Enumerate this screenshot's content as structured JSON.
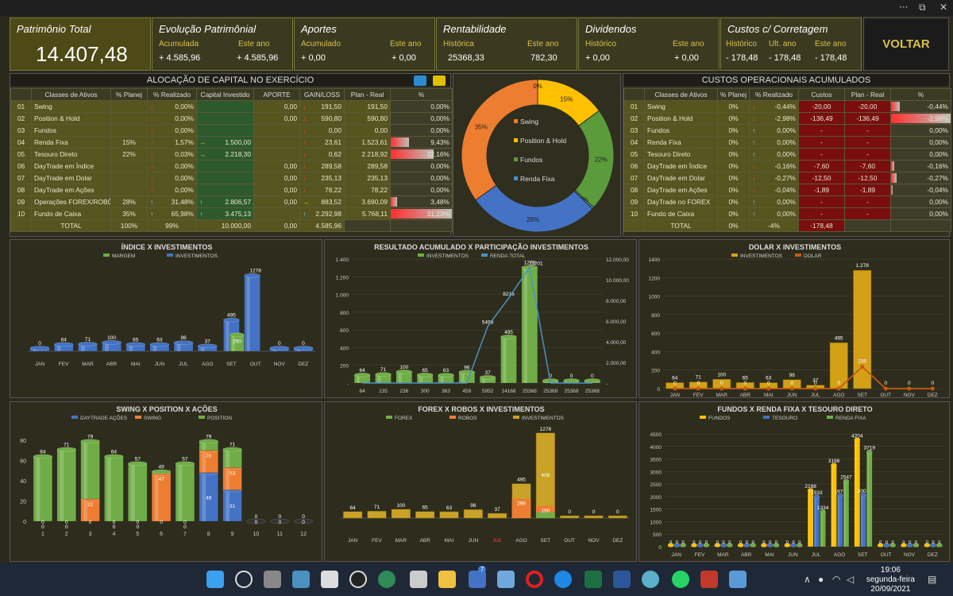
{
  "titlebar": {
    "dots": "···",
    "restore": "⧉",
    "close": "✕"
  },
  "kpis": {
    "total": {
      "title": "Patrimônio Total",
      "value": "14.407,48"
    },
    "evolucao": {
      "title": "Evolução Patrimônial",
      "l1": "Acumulada",
      "l2": "Este ano",
      "v1": "+ 4.585,96",
      "v2": "+ 4.585,96"
    },
    "aportes": {
      "title": "Aportes",
      "l1": "Acumulado",
      "l2": "Este ano",
      "v1": "+ 0,00",
      "v2": "+ 0,00"
    },
    "rent": {
      "title": "Rentabilidade",
      "l1": "Histórica",
      "l2": "Este ano",
      "v1": "25368,33",
      "v2": "782,30"
    },
    "div": {
      "title": "Dividendos",
      "l1": "Histórico",
      "l2": "Este ano",
      "v1": "+ 0,00",
      "v2": "+ 0,00"
    },
    "custos": {
      "title": "Custos c/ Corretagem",
      "l1": "Histórico",
      "l2": "Ult. ano",
      "l3": "Este ano",
      "v1": "- 178,48",
      "v2": "- 178,48",
      "v3": "- 178,48"
    }
  },
  "voltar": "VOLTAR",
  "alloc": {
    "title": "ALOCAÇÃO DE CAPITAL NO EXERCÍCIO",
    "headers": [
      "",
      "Classes de Ativos",
      "% Planej",
      "% Realizado",
      "Capital Investido",
      "APORTE",
      "GAIN/LOSS",
      "Plan - Real",
      "%"
    ],
    "rows": [
      {
        "n": "01",
        "name": "Swing",
        "plan": "",
        "arrow": "dn",
        "real": "0,00%",
        "carrow": "",
        "cap": "",
        "aporte": "0,00",
        "garrow": "dn",
        "gain": "191,50",
        "pr": "191,50",
        "pct": "0,00%",
        "bar": 0
      },
      {
        "n": "02",
        "name": "Position & Hold",
        "plan": "",
        "arrow": "dn",
        "real": "0,00%",
        "carrow": "",
        "cap": "",
        "aporte": "0,00",
        "garrow": "dn",
        "gain": "590,80",
        "pr": "590,80",
        "pct": "0,00%",
        "bar": 0
      },
      {
        "n": "03",
        "name": "Fundos",
        "plan": "",
        "arrow": "dn",
        "real": "0,00%",
        "carrow": "",
        "cap": "",
        "aporte": "",
        "garrow": "dn",
        "gain": "0,00",
        "pr": "0,00",
        "pct": "0,00%",
        "bar": 0
      },
      {
        "n": "04",
        "name": "Renda Fixa",
        "plan": "15%",
        "arrow": "dn",
        "real": "1,57%",
        "carrow": "rt",
        "cap": "1.500,00",
        "aporte": "",
        "garrow": "dn",
        "gain": "23,61",
        "pr": "1.523,61",
        "pct": "9,43%",
        "bar": 0.3
      },
      {
        "n": "05",
        "name": "Tesouro Direto",
        "plan": "22%",
        "arrow": "dn",
        "real": "0,03%",
        "carrow": "rt",
        "cap": "2.218,30",
        "aporte": "",
        "garrow": "dn",
        "gain": "0,62",
        "pr": "2.218,92",
        "pct": "22,16%",
        "bar": 0.7
      },
      {
        "n": "06",
        "name": "DayTrade em Índice",
        "plan": "",
        "arrow": "dn",
        "real": "0,00%",
        "carrow": "",
        "cap": "",
        "aporte": "0,00",
        "garrow": "dn",
        "gain": "289,58",
        "pr": "289,58",
        "pct": "0,00%",
        "bar": 0
      },
      {
        "n": "07",
        "name": "DayTrade em Dolar",
        "plan": "",
        "arrow": "dn",
        "real": "0,00%",
        "carrow": "",
        "cap": "",
        "aporte": "0,00",
        "garrow": "dn",
        "gain": "235,13",
        "pr": "235,13",
        "pct": "0,00%",
        "bar": 0
      },
      {
        "n": "08",
        "name": "DayTrade em Ações",
        "plan": "",
        "arrow": "dn",
        "real": "0,00%",
        "carrow": "",
        "cap": "",
        "aporte": "0,00",
        "garrow": "dn",
        "gain": "78,22",
        "pr": "78,22",
        "pct": "0,00%",
        "bar": 0
      },
      {
        "n": "09",
        "name": "Operações FOREX/ROBÔ",
        "plan": "28%",
        "arrow": "up",
        "real": "31,48%",
        "carrow": "up",
        "cap": "2.806,57",
        "aporte": "0,00",
        "garrow": "rt",
        "gain": "883,52",
        "pr": "3.690,09",
        "pct": "3,48%",
        "bar": 0.1
      },
      {
        "n": "10",
        "name": "Fundo de Caixa",
        "plan": "35%",
        "arrow": "up",
        "real": "65,98%",
        "carrow": "up",
        "cap": "3.475,13",
        "aporte": "",
        "garrow": "up",
        "gain": "2.292,98",
        "pr": "5.768,11",
        "pct": "31,23%",
        "bar": 1
      }
    ],
    "total": {
      "label": "TOTAL",
      "plan": "100%",
      "real": "99%",
      "cap": "10.000,00",
      "aporte": "0,00",
      "gain": "4.585,96"
    }
  },
  "donut": {
    "slices": [
      {
        "label": "Swing",
        "pct": "35%",
        "value": 35,
        "color": "#ed7d31"
      },
      {
        "label": "Position & Hold",
        "pct": "15%",
        "value": 15,
        "color": "#ffc000"
      },
      {
        "label": "Fundos",
        "pct": "22%",
        "value": 22,
        "color": "#5b9b3b"
      },
      {
        "label": "Renda Fixa",
        "pct": "0%",
        "value": 0.01,
        "color": "#4a90c0"
      },
      {
        "label": "",
        "pct": "28%",
        "value": 28,
        "color": "#4472c4"
      }
    ],
    "extra_labels": [
      "0%",
      "0%"
    ]
  },
  "custos": {
    "title": "CUSTOS OPERACIONAIS ACUMULADOS",
    "headers": [
      "",
      "Classes de Ativos",
      "% Planej",
      "% Realizado",
      "Custos",
      "Plan - Real",
      "%"
    ],
    "rows": [
      {
        "n": "01",
        "name": "Swing",
        "plan": "0%",
        "arrow": "dn",
        "real": "-0,44%",
        "custo": "-20,00",
        "pr": "-20,00",
        "pct": "-0,44%",
        "bar": 0.15
      },
      {
        "n": "02",
        "name": "Position & Hold",
        "plan": "0%",
        "arrow": "dn",
        "real": "-2,98%",
        "custo": "-136,49",
        "pr": "-136,49",
        "pct": "-2,98%",
        "bar": 1
      },
      {
        "n": "03",
        "name": "Fundos",
        "plan": "0%",
        "arrow": "up",
        "real": "0,00%",
        "custo": "-",
        "pr": "-",
        "pct": "0,00%",
        "bar": 0
      },
      {
        "n": "04",
        "name": "Renda Fixa",
        "plan": "0%",
        "arrow": "up",
        "real": "0,00%",
        "custo": "-",
        "pr": "-",
        "pct": "0,00%",
        "bar": 0
      },
      {
        "n": "05",
        "name": "Tesouro Direto",
        "plan": "0%",
        "arrow": "up",
        "real": "0,00%",
        "custo": "-",
        "pr": "-",
        "pct": "0,00%",
        "bar": 0
      },
      {
        "n": "06",
        "name": "DayTrade em Índice",
        "plan": "0%",
        "arrow": "dn",
        "real": "-0,16%",
        "custo": "-7,60",
        "pr": "-7,60",
        "pct": "-0,16%",
        "bar": 0.05
      },
      {
        "n": "07",
        "name": "DayTrade em Dolar",
        "plan": "0%",
        "arrow": "dn",
        "real": "-0,27%",
        "custo": "-12,50",
        "pr": "-12,50",
        "pct": "-0,27%",
        "bar": 0.09
      },
      {
        "n": "08",
        "name": "DayTrade em Ações",
        "plan": "0%",
        "arrow": "dn",
        "real": "-0,04%",
        "custo": "-1,89",
        "pr": "-1,89",
        "pct": "-0,04%",
        "bar": 0.02
      },
      {
        "n": "09",
        "name": "DayTrade no FOREX",
        "plan": "0%",
        "arrow": "up",
        "real": "0,00%",
        "custo": "-",
        "pr": "-",
        "pct": "0,00%",
        "bar": 0
      },
      {
        "n": "10",
        "name": "Fundo de Caixa",
        "plan": "0%",
        "arrow": "up",
        "real": "0,00%",
        "custo": "-",
        "pr": "-",
        "pct": "0,00%",
        "bar": 0
      }
    ],
    "total": {
      "label": "TOTAL",
      "plan": "0%",
      "real": "-4%",
      "custo": "-178,48"
    }
  },
  "chart_data": [
    {
      "id": "indice",
      "type": "bar",
      "title": "ÍNDICE X INVESTIMENTOS",
      "categories": [
        "JAN",
        "FEV",
        "MAR",
        "ABR",
        "MAI",
        "JUN",
        "JUL",
        "AGO",
        "SET",
        "OUT",
        "NOV",
        "DEZ"
      ],
      "series": [
        {
          "name": "MARGEM",
          "values": [
            0,
            0,
            0,
            0,
            0,
            0,
            0,
            0,
            290,
            0,
            0,
            0
          ],
          "color": "#70ad47"
        },
        {
          "name": "INVESTIMENTOS",
          "values": [
            0,
            64,
            71,
            100,
            65,
            63,
            96,
            37,
            495,
            1278,
            0,
            0
          ],
          "color": "#4472c4"
        }
      ],
      "labels_margin": [
        "0",
        "0",
        "0",
        "0",
        "0",
        "0",
        "0",
        "0",
        "290",
        "0",
        "0",
        "0"
      ],
      "labels_inv": [
        "0",
        "64",
        "71",
        "100",
        "65",
        "63",
        "96",
        "37",
        "495",
        "1278",
        "0",
        "0"
      ]
    },
    {
      "id": "resultado",
      "type": "bar+line",
      "title": "RESULTADO ACUMULADO X PARTICIPAÇÃO INVESTIMENTOS",
      "categories": [
        "64",
        "135",
        "236",
        "300",
        "363",
        "459",
        "5952",
        "14168",
        "25368",
        "25368",
        "25368",
        "25368"
      ],
      "y_left_ticks": [
        "1.400",
        "1.200",
        "1.000",
        "800",
        "600",
        "400",
        "200",
        "-"
      ],
      "y_right_ticks": [
        "12.000,00",
        "10.000,00",
        "8.000,00",
        "6.000,00",
        "4.000,00",
        "2.000,00",
        "-"
      ],
      "series": [
        {
          "name": "INVESTIMENTOS",
          "values": [
            64,
            71,
            100,
            65,
            63,
            96,
            37,
            495,
            1278,
            0,
            0,
            0
          ],
          "color": "#70ad47"
        },
        {
          "name": "RENDA TOTAL",
          "values": [
            0,
            0,
            0,
            0,
            0,
            0,
            5493,
            8216,
            11201,
            0,
            0,
            0
          ],
          "color": "#4a90c0"
        }
      ],
      "bar_labels": [
        "64",
        "71",
        "100",
        "65",
        "63",
        "96",
        "37",
        "495",
        "1278",
        "0",
        "0",
        "0"
      ],
      "line_labels": [
        "",
        "",
        "",
        "",
        "",
        "",
        "5493",
        "8216",
        "11201",
        "",
        "",
        ""
      ]
    },
    {
      "id": "dolar",
      "type": "bar+line",
      "title": "DOLAR X INVESTIMENTOS",
      "categories": [
        "JAN",
        "FEV",
        "MAR",
        "ABR",
        "MAI",
        "JUN",
        "JUL",
        "AGO",
        "SET",
        "OUT",
        "NOV",
        "DEZ"
      ],
      "y_ticks": [
        "1400",
        "1200",
        "1000",
        "800",
        "600",
        "400",
        "200",
        "0"
      ],
      "series": [
        {
          "name": "INVESTIMENTOS",
          "values": [
            64,
            71,
            100,
            65,
            63,
            96,
            37,
            495,
            1278,
            0,
            0,
            0
          ],
          "color": "#d4a017"
        },
        {
          "name": "DOLAR",
          "values": [
            0,
            0,
            0,
            0,
            0,
            0,
            0,
            0,
            235,
            0,
            0,
            0
          ],
          "color": "#c55a11"
        }
      ],
      "bar_labels": [
        "64",
        "71",
        "100",
        "65",
        "63",
        "96",
        "37",
        "495",
        "1.278",
        "",
        "",
        ""
      ],
      "line_labels": [
        "0",
        "0",
        "0",
        "0",
        "0",
        "0",
        "0",
        "0",
        "235",
        "0",
        "0",
        "0"
      ]
    },
    {
      "id": "swing",
      "type": "stacked-bar",
      "title": "SWING X POSITION X AÇÕES",
      "categories": [
        "1",
        "2",
        "3",
        "4",
        "5",
        "6",
        "7",
        "8",
        "9",
        "10",
        "11",
        "12"
      ],
      "y_ticks": [
        "80",
        "60",
        "40",
        "20",
        "0"
      ],
      "series": [
        {
          "name": "DAYTRADE AÇÕES",
          "values": [
            0,
            0,
            0,
            0,
            0,
            0,
            0,
            48,
            31,
            0,
            0,
            0
          ],
          "color": "#4472c4"
        },
        {
          "name": "SWING",
          "values": [
            0,
            0,
            22,
            0,
            0,
            47,
            0,
            22,
            22,
            0,
            0,
            0
          ],
          "color": "#ed7d31"
        },
        {
          "name": "POSITION",
          "values": [
            64,
            71,
            57,
            64,
            57,
            2,
            57,
            9,
            18,
            0,
            0,
            0
          ],
          "color": "#70ad47"
        }
      ],
      "top_labels": [
        "64",
        "71",
        "79",
        "64",
        "57",
        "49",
        "57",
        "79",
        "71",
        "0",
        "0",
        "0"
      ],
      "mid_labels": [
        "0",
        "0",
        "22",
        "0",
        "0",
        "47",
        "0",
        "70",
        "53",
        "",
        "",
        ""
      ],
      "low_labels": [
        "0",
        "0",
        "0",
        "0",
        "0",
        "0",
        "0",
        "48",
        "31",
        "0",
        "0",
        "0"
      ]
    },
    {
      "id": "forex",
      "type": "stacked-bar",
      "title": "FOREX X ROBOS X INVESTIMENTOS",
      "categories": [
        "JAN",
        "FEV",
        "MAR",
        "ABR",
        "MAI",
        "JUN",
        "JUL",
        "AGO",
        "SET",
        "OUT",
        "NOV",
        "DEZ"
      ],
      "series": [
        {
          "name": "FOREX",
          "values": [
            0,
            0,
            0,
            0,
            0,
            0,
            0,
            0,
            90,
            0,
            0,
            0
          ],
          "color": "#70ad47"
        },
        {
          "name": "ROBOS",
          "values": [
            0,
            0,
            0,
            0,
            0,
            0,
            0,
            298,
            190,
            0,
            0,
            0
          ],
          "color": "#ed7d31"
        },
        {
          "name": "INVESTIMENTOS",
          "values": [
            64,
            71,
            100,
            65,
            63,
            96,
            37,
            495,
            1278,
            0,
            0,
            0
          ],
          "color": "#c9a227"
        }
      ],
      "labels": [
        "64",
        "71",
        "100",
        "65",
        "63",
        "96",
        "37",
        "495",
        "1278",
        "0",
        "0",
        "0"
      ],
      "robo_labels": [
        "",
        "",
        "",
        "",
        "",
        "",
        "",
        "298",
        "190",
        "",
        "",
        ""
      ],
      "extra_labels": [
        "",
        "",
        "",
        "",
        "",
        "",
        "",
        "",
        "408",
        "",
        "",
        ""
      ]
    },
    {
      "id": "fundos",
      "type": "bar",
      "title": "FUNDOS X RENDA FIXA X TESOURO DIRETO",
      "categories": [
        "JAN",
        "FEV",
        "MAR",
        "ABR",
        "MAI",
        "JUN",
        "JUL",
        "AGO",
        "SET",
        "OUT",
        "NOV",
        "DEZ"
      ],
      "y_ticks": [
        "4500",
        "4000",
        "3500",
        "3000",
        "2500",
        "2000",
        "1500",
        "1000",
        "500",
        "0"
      ],
      "series": [
        {
          "name": "FUNDOS",
          "values": [
            0,
            0,
            0,
            0,
            0,
            0,
            2188,
            3198,
            4204,
            0,
            0,
            0
          ],
          "color": "#ffc000"
        },
        {
          "name": "TESOURO",
          "values": [
            0,
            0,
            0,
            0,
            0,
            0,
            1933,
            1975,
            2003,
            0,
            0,
            0
          ],
          "color": "#4472c4"
        },
        {
          "name": "RENDA FIXA",
          "values": [
            0,
            0,
            0,
            0,
            0,
            0,
            1334,
            2547,
            3719,
            0,
            0,
            0
          ],
          "color": "#70ad47"
        }
      ]
    }
  ],
  "taskbar": {
    "time": "19:06",
    "day": "segunda-feira",
    "date": "20/09/2021",
    "badge": "7"
  }
}
